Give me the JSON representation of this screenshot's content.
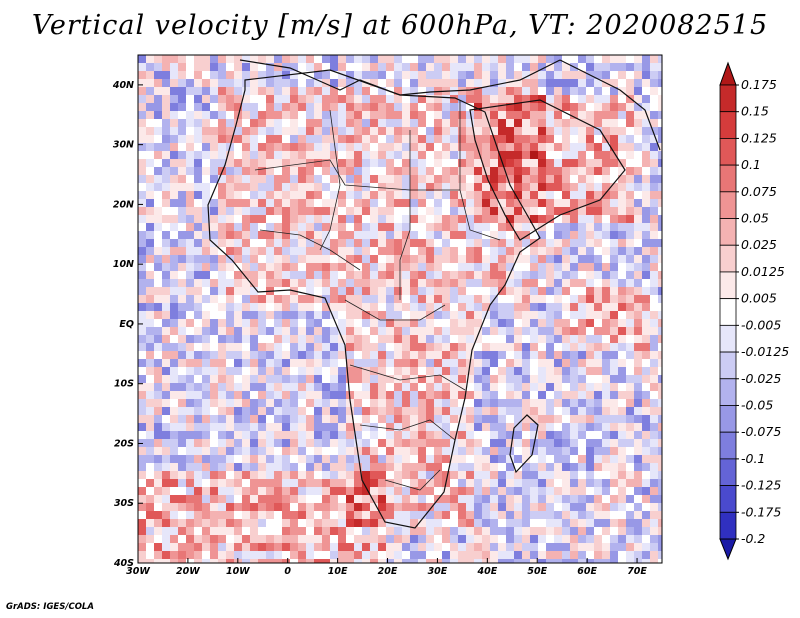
{
  "title": "Vertical velocity [m/s] at 600hPa, VT: 2020082515",
  "footer": "GrADS: IGES/COLA",
  "chart_data": {
    "type": "heatmap",
    "variable": "Vertical velocity",
    "units": "m/s",
    "level": "600hPa",
    "valid_time": "2020082515",
    "xlim": [
      -30,
      75
    ],
    "ylim": [
      -40,
      45
    ],
    "x_ticks": [
      -30,
      -20,
      -10,
      0,
      10,
      20,
      30,
      40,
      50,
      60,
      70
    ],
    "x_tick_labels": [
      "30W",
      "20W",
      "10W",
      "0",
      "10E",
      "20E",
      "30E",
      "40E",
      "50E",
      "60E",
      "70E"
    ],
    "y_ticks": [
      40,
      30,
      20,
      10,
      0,
      -10,
      -20,
      -30,
      -40
    ],
    "y_tick_labels": [
      "40N",
      "30N",
      "20N",
      "10N",
      "EQ",
      "10S",
      "20S",
      "30S",
      "40S"
    ],
    "colorbar": {
      "levels": [
        "0.175",
        "0.15",
        "0.125",
        "0.1",
        "0.075",
        "0.05",
        "0.025",
        "0.0125",
        "0.005",
        "-0.005",
        "-0.0125",
        "-0.025",
        "-0.05",
        "-0.075",
        "-0.1",
        "-0.125",
        "-0.175",
        "-0.2"
      ],
      "colors": [
        "#b01818",
        "#c52a2a",
        "#d53c3c",
        "#e05858",
        "#e87676",
        "#ef9494",
        "#f4b2b2",
        "#f8cfcf",
        "#fce9e9",
        "#ffffff",
        "#e6e6fa",
        "#ccccf4",
        "#b2b2ee",
        "#9898e6",
        "#7e7ede",
        "#6464d6",
        "#4a4ace",
        "#3030c0",
        "#1a1aa6"
      ]
    },
    "features": [
      "coastlines",
      "country borders"
    ]
  }
}
